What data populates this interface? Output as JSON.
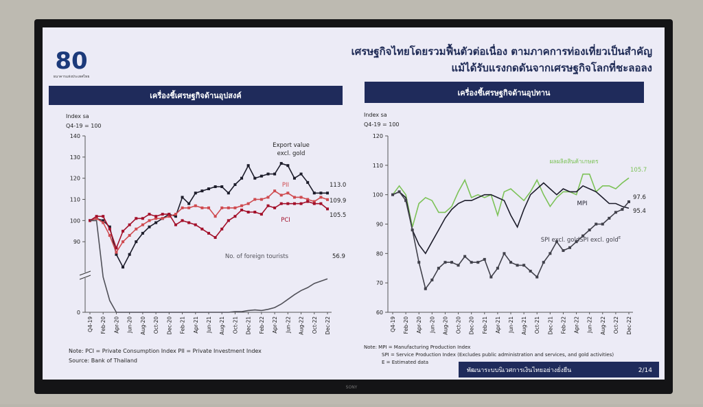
{
  "slide": {
    "title_lines": [
      "เศรษฐกิจไทยโดยรวมฟื้นตัวต่อเนื่อง ตามภาคการท่องเที่ยวเป็นสำคัญ",
      "แม้ได้รับแรงกดดันจากเศรษฐกิจโลกที่ชะลอลง"
    ],
    "logo_number": "80",
    "logo_text": "ธนาคารแห่งประเทศไทย",
    "footer": "พัฒนาระบบนิเวศการเงินไทยอย่างยั่งยืน",
    "page": "2/14",
    "tv_brand": "SONY"
  },
  "chart_data": [
    {
      "type": "line",
      "header": "เครื่องชี้เศรษฐกิจด้านอุปสงค์",
      "y_label_lines": [
        "Index sa",
        "Q4-19 = 100"
      ],
      "categories": [
        "Q4-19",
        null,
        "Feb-20",
        null,
        "Apr-20",
        null,
        "Jun-20",
        null,
        "Aug-20",
        null,
        "Oct-20",
        null,
        "Dec-20",
        null,
        "Feb-21",
        null,
        "Apr-21",
        null,
        "Jun-21",
        null,
        "Aug-21",
        null,
        "Oct-21",
        null,
        "Dec-21",
        null,
        "Feb-22",
        null,
        "Apr-22",
        null,
        "Jun-22",
        null,
        "Aug-22",
        null,
        "Oct-22",
        null,
        "Dec-22"
      ],
      "ylim": [
        0,
        140
      ],
      "yticks": [
        0,
        90,
        100,
        110,
        120,
        130,
        140
      ],
      "y_break": [
        60,
        75
      ],
      "series": [
        {
          "name_lines": [
            "Export value",
            "excl. gold"
          ],
          "color": "#1c1c2a",
          "markers": true,
          "values": [
            100,
            101,
            100,
            97,
            84,
            78,
            84,
            90,
            94,
            97,
            99,
            101,
            103,
            102,
            111,
            108,
            113,
            114,
            115,
            116,
            116,
            113,
            117,
            120,
            126,
            120,
            121,
            122,
            122,
            127,
            126,
            120,
            122,
            118,
            113,
            113,
            113
          ],
          "value_labels": [
            null,
            null,
            null,
            null,
            null,
            null,
            null,
            null,
            null,
            null,
            null,
            null,
            null,
            null,
            null,
            null,
            null,
            null,
            null,
            null,
            null,
            null,
            null,
            null,
            null,
            null,
            null,
            null,
            null,
            null,
            null,
            null,
            null,
            null,
            null,
            null,
            "113.0"
          ]
        },
        {
          "name": "PII",
          "color": "#cf4a4f",
          "markers": true,
          "values": [
            100,
            101,
            99,
            93,
            85,
            90,
            93,
            96,
            98,
            100,
            101,
            101,
            102,
            103,
            106,
            106,
            107,
            106,
            106,
            102,
            106,
            106,
            106,
            107,
            108,
            110,
            110,
            111,
            114,
            112,
            113,
            111,
            111,
            110,
            109,
            111,
            109.9
          ]
        },
        {
          "name": "PCI",
          "color": "#a3102a",
          "markers": true,
          "values": [
            100,
            102,
            102,
            96,
            87,
            95,
            98,
            101,
            101,
            103,
            102,
            103,
            103,
            98,
            100,
            99,
            98,
            96,
            94,
            92,
            96,
            100,
            102,
            105,
            104,
            104,
            103,
            107,
            106,
            108,
            108,
            108,
            108,
            109,
            108,
            108,
            105.5
          ]
        },
        {
          "name": "No. of foreign tourists",
          "color": "#505058",
          "markers": false,
          "values": [
            100,
            100,
            60,
            20,
            0,
            0,
            0,
            0,
            0,
            0,
            0,
            0,
            0,
            0,
            0,
            0,
            0,
            0,
            0,
            0,
            0,
            0,
            1,
            1,
            3,
            4,
            3,
            5,
            8,
            14,
            22,
            30,
            37,
            42,
            49,
            53,
            56.9
          ]
        }
      ],
      "notes": [
        "Note: PCI = Private Consumption Index    PII = Private Investment Index",
        "Source: Bank of Thailand"
      ]
    },
    {
      "type": "line",
      "header": "เครื่องชี้เศรษฐกิจด้านอุปทาน",
      "y_label_lines": [
        "Index sa",
        "Q4-19 = 100"
      ],
      "categories": [
        "Q4-19",
        null,
        "Feb-20",
        null,
        "Apr-20",
        null,
        "Jun-20",
        null,
        "Aug-20",
        null,
        "Oct-20",
        null,
        "Dec-20",
        null,
        "Feb-21",
        null,
        "Apr-21",
        null,
        "Jun-21",
        null,
        "Aug-21",
        null,
        "Oct-21",
        null,
        "Dec-21",
        null,
        "Feb-22",
        null,
        "Apr-22",
        null,
        "Jun-22",
        null,
        "Aug-22",
        null,
        "Oct-22",
        null,
        "Dec-22"
      ],
      "ylim": [
        60,
        120
      ],
      "yticks": [
        60,
        70,
        80,
        90,
        100,
        110,
        120
      ],
      "series": [
        {
          "name": "ผลผลิตสินค้าเกษตร",
          "color": "#7cc257",
          "markers": false,
          "values": [
            100,
            103,
            100,
            89,
            97,
            99,
            98,
            94,
            94,
            96,
            101,
            105,
            99,
            100,
            99,
            100,
            93,
            101,
            102,
            100,
            98,
            101,
            105,
            100,
            96,
            99,
            101,
            101,
            100,
            107,
            107,
            101,
            103,
            103,
            102,
            104,
            105.7
          ]
        },
        {
          "name": "MPI",
          "color": "#1c1c2a",
          "markers": false,
          "values": [
            100,
            101,
            99,
            88,
            83,
            80,
            84,
            88,
            92,
            95,
            97,
            98,
            98,
            99,
            100,
            100,
            99,
            98,
            93,
            89,
            95,
            100,
            102,
            104,
            102,
            100,
            102,
            101,
            101,
            103,
            102,
            101,
            99,
            97,
            97,
            96,
            95.4
          ]
        },
        {
          "name": "SPI excl. gold",
          "name_note": "E",
          "color": "#40404a",
          "markers": true,
          "values": [
            100,
            101,
            98,
            88,
            77,
            68,
            71,
            75,
            77,
            77,
            76,
            79,
            77,
            77,
            78,
            72,
            75,
            80,
            77,
            76,
            76,
            74,
            72,
            77,
            80,
            84,
            81,
            82,
            84,
            86,
            88,
            90,
            90,
            92,
            94,
            95,
            97.6
          ]
        }
      ],
      "notes": [
        "Note: MPI = Manufacturing Production Index",
        "SPI = Service Production Index (Excludes public administration and services, and gold activities)",
        "E = Estimated data"
      ]
    }
  ]
}
